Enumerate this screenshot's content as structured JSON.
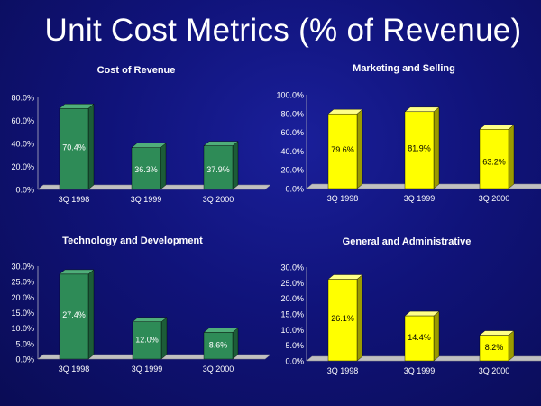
{
  "slide": {
    "title": "Unit Cost Metrics (% of Revenue)"
  },
  "colors": {
    "green_front": "#2e8b57",
    "green_side": "#1c5c38",
    "green_top": "#4fae7a",
    "yellow_front": "#ffff00",
    "yellow_side": "#9a9a00",
    "yellow_top": "#ffff88",
    "text": "#ffffff",
    "floor": "#c0c0c0",
    "floor_dark": "#8a8a8a",
    "axis": "#9090b0"
  },
  "chart_data": [
    {
      "type": "bar",
      "title": "Cost of Revenue",
      "categories": [
        "3Q 1998",
        "3Q 1999",
        "3Q 2000"
      ],
      "values": [
        70.4,
        36.3,
        37.9
      ],
      "value_labels": [
        "70.4%",
        "36.3%",
        "37.9%"
      ],
      "yticks": [
        "0.0%",
        "20.0%",
        "40.0%",
        "60.0%",
        "80.0%"
      ],
      "ylim": [
        0,
        80
      ],
      "color": "green",
      "label_pos": [
        "mid",
        "low",
        "low"
      ]
    },
    {
      "type": "bar",
      "title": "Marketing and Selling",
      "categories": [
        "3Q 1998",
        "3Q 1999",
        "3Q 2000"
      ],
      "values": [
        79.6,
        81.9,
        63.2
      ],
      "value_labels": [
        "79.6%",
        "81.9%",
        "63.2%"
      ],
      "yticks": [
        "0.0%",
        "20.0%",
        "40.0%",
        "60.0%",
        "80.0%",
        "100.0%"
      ],
      "ylim": [
        0,
        100
      ],
      "color": "yellow",
      "label_pos": [
        "mid",
        "mid",
        "midlow"
      ]
    },
    {
      "type": "bar",
      "title": "Technology and Development",
      "categories": [
        "3Q 1998",
        "3Q 1999",
        "3Q 2000"
      ],
      "values": [
        27.4,
        12.0,
        8.6
      ],
      "value_labels": [
        "27.4%",
        "12.0%",
        "8.6%"
      ],
      "yticks": [
        "0.0%",
        "5.0%",
        "10.0%",
        "15.0%",
        "20.0%",
        "25.0%",
        "30.0%"
      ],
      "ylim": [
        0,
        30
      ],
      "color": "green",
      "label_pos": [
        "mid",
        "mid",
        "mid"
      ]
    },
    {
      "type": "bar",
      "title": "General and Administrative",
      "categories": [
        "3Q 1998",
        "3Q 1999",
        "3Q 2000"
      ],
      "values": [
        26.1,
        14.4,
        8.2
      ],
      "value_labels": [
        "26.1%",
        "14.4%",
        "8.2%"
      ],
      "yticks": [
        "0.0%",
        "5.0%",
        "10.0%",
        "15.0%",
        "20.0%",
        "25.0%",
        "30.0%"
      ],
      "ylim": [
        0,
        30
      ],
      "color": "yellow",
      "label_pos": [
        "mid",
        "mid",
        "mid"
      ]
    }
  ]
}
